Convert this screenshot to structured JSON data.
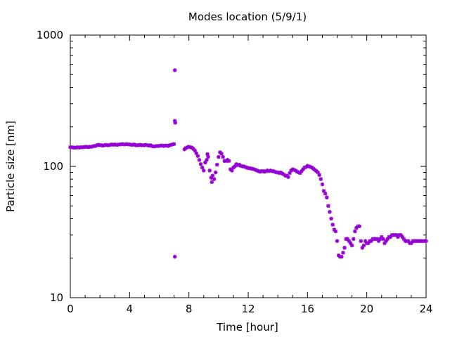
{
  "chart_data": {
    "type": "scatter",
    "title": "Modes location (5/9/1)",
    "xlabel": "Time [hour]",
    "ylabel": "Particle size [nm]",
    "xlim": [
      0,
      24
    ],
    "ylim": [
      10,
      1000
    ],
    "yscale": "log",
    "grid": false,
    "legend": "none",
    "marker_color": "#9400d3",
    "x_ticks": [
      0,
      4,
      8,
      12,
      16,
      20,
      24
    ],
    "x_tick_labels": [
      "0",
      "4",
      "8",
      "12",
      "16",
      "20",
      "24"
    ],
    "y_ticks": [
      10,
      100,
      1000
    ],
    "y_tick_labels": [
      "10",
      "100",
      "1000"
    ],
    "series": [
      {
        "points": [
          [
            0.0,
            140
          ],
          [
            0.1,
            140
          ],
          [
            0.2,
            139
          ],
          [
            0.3,
            139
          ],
          [
            0.4,
            139
          ],
          [
            0.5,
            140
          ],
          [
            0.6,
            139
          ],
          [
            0.7,
            140
          ],
          [
            0.8,
            140
          ],
          [
            0.9,
            140
          ],
          [
            1.0,
            141
          ],
          [
            1.1,
            141
          ],
          [
            1.2,
            140
          ],
          [
            1.3,
            141
          ],
          [
            1.4,
            141
          ],
          [
            1.5,
            142
          ],
          [
            1.6,
            143
          ],
          [
            1.7,
            143
          ],
          [
            1.8,
            145
          ],
          [
            1.9,
            146
          ],
          [
            2.0,
            145
          ],
          [
            2.1,
            145
          ],
          [
            2.2,
            144
          ],
          [
            2.3,
            145
          ],
          [
            2.4,
            146
          ],
          [
            2.5,
            145
          ],
          [
            2.6,
            145
          ],
          [
            2.7,
            146
          ],
          [
            2.8,
            147
          ],
          [
            2.9,
            146
          ],
          [
            3.0,
            147
          ],
          [
            3.1,
            146
          ],
          [
            3.2,
            146
          ],
          [
            3.3,
            147
          ],
          [
            3.4,
            147
          ],
          [
            3.5,
            148
          ],
          [
            3.6,
            147
          ],
          [
            3.7,
            147
          ],
          [
            3.8,
            148
          ],
          [
            3.9,
            147
          ],
          [
            4.0,
            147
          ],
          [
            4.1,
            146
          ],
          [
            4.2,
            146
          ],
          [
            4.3,
            147
          ],
          [
            4.4,
            145
          ],
          [
            4.5,
            145
          ],
          [
            4.6,
            145
          ],
          [
            4.7,
            146
          ],
          [
            4.8,
            145
          ],
          [
            4.9,
            145
          ],
          [
            5.0,
            145
          ],
          [
            5.1,
            146
          ],
          [
            5.2,
            145
          ],
          [
            5.3,
            144
          ],
          [
            5.4,
            145
          ],
          [
            5.5,
            143
          ],
          [
            5.6,
            142
          ],
          [
            5.7,
            142
          ],
          [
            5.8,
            143
          ],
          [
            5.9,
            143
          ],
          [
            6.0,
            143
          ],
          [
            6.1,
            144
          ],
          [
            6.2,
            144
          ],
          [
            6.3,
            143
          ],
          [
            6.4,
            144
          ],
          [
            6.5,
            144
          ],
          [
            6.6,
            143
          ],
          [
            6.7,
            145
          ],
          [
            6.8,
            146
          ],
          [
            6.9,
            147
          ],
          [
            7.0,
            148
          ],
          [
            7.05,
            540
          ],
          [
            7.05,
            222
          ],
          [
            7.08,
            215
          ],
          [
            7.05,
            20.5
          ],
          [
            7.7,
            135
          ],
          [
            7.8,
            138
          ],
          [
            7.9,
            140
          ],
          [
            8.0,
            141
          ],
          [
            8.1,
            140
          ],
          [
            8.2,
            139
          ],
          [
            8.3,
            136
          ],
          [
            8.4,
            132
          ],
          [
            8.5,
            126
          ],
          [
            8.6,
            120
          ],
          [
            8.7,
            112
          ],
          [
            8.8,
            104
          ],
          [
            8.9,
            98
          ],
          [
            9.0,
            93
          ],
          [
            9.1,
            107
          ],
          [
            9.2,
            112
          ],
          [
            9.25,
            124
          ],
          [
            9.3,
            118
          ],
          [
            9.4,
            93
          ],
          [
            9.5,
            82
          ],
          [
            9.55,
            76
          ],
          [
            9.6,
            85
          ],
          [
            9.7,
            80
          ],
          [
            9.8,
            90
          ],
          [
            9.9,
            103
          ],
          [
            10.0,
            118
          ],
          [
            10.1,
            128
          ],
          [
            10.2,
            125
          ],
          [
            10.3,
            118
          ],
          [
            10.4,
            110
          ],
          [
            10.5,
            110
          ],
          [
            10.6,
            112
          ],
          [
            10.7,
            110
          ],
          [
            10.8,
            95
          ],
          [
            10.9,
            93
          ],
          [
            11.0,
            98
          ],
          [
            11.1,
            100
          ],
          [
            11.2,
            104
          ],
          [
            11.3,
            102
          ],
          [
            11.4,
            103
          ],
          [
            11.5,
            101
          ],
          [
            11.6,
            100
          ],
          [
            11.7,
            100
          ],
          [
            11.8,
            99
          ],
          [
            11.9,
            98
          ],
          [
            12.0,
            97
          ],
          [
            12.1,
            97
          ],
          [
            12.2,
            96
          ],
          [
            12.3,
            96
          ],
          [
            12.4,
            95
          ],
          [
            12.5,
            94
          ],
          [
            12.6,
            93
          ],
          [
            12.7,
            92
          ],
          [
            12.8,
            91
          ],
          [
            12.9,
            92
          ],
          [
            13.0,
            92
          ],
          [
            13.1,
            91
          ],
          [
            13.2,
            92
          ],
          [
            13.3,
            93
          ],
          [
            13.4,
            92
          ],
          [
            13.5,
            93
          ],
          [
            13.6,
            92
          ],
          [
            13.7,
            92
          ],
          [
            13.8,
            91
          ],
          [
            13.9,
            90
          ],
          [
            14.0,
            90
          ],
          [
            14.1,
            89
          ],
          [
            14.2,
            90
          ],
          [
            14.3,
            88
          ],
          [
            14.4,
            87
          ],
          [
            14.5,
            85
          ],
          [
            14.6,
            85
          ],
          [
            14.7,
            83
          ],
          [
            14.8,
            89
          ],
          [
            14.9,
            93
          ],
          [
            15.0,
            95
          ],
          [
            15.1,
            94
          ],
          [
            15.2,
            93
          ],
          [
            15.3,
            91
          ],
          [
            15.4,
            90
          ],
          [
            15.5,
            89
          ],
          [
            15.6,
            92
          ],
          [
            15.7,
            95
          ],
          [
            15.8,
            98
          ],
          [
            15.9,
            99
          ],
          [
            16.0,
            101
          ],
          [
            16.1,
            100
          ],
          [
            16.2,
            99
          ],
          [
            16.3,
            98
          ],
          [
            16.4,
            96
          ],
          [
            16.5,
            94
          ],
          [
            16.6,
            92
          ],
          [
            16.7,
            90
          ],
          [
            16.8,
            86
          ],
          [
            16.9,
            80
          ],
          [
            17.0,
            73
          ],
          [
            17.1,
            65
          ],
          [
            17.2,
            62
          ],
          [
            17.3,
            58
          ],
          [
            17.4,
            50
          ],
          [
            17.5,
            45
          ],
          [
            17.6,
            40
          ],
          [
            17.7,
            36
          ],
          [
            17.8,
            33
          ],
          [
            17.9,
            32
          ],
          [
            18.0,
            27
          ],
          [
            18.1,
            21
          ],
          [
            18.2,
            20.5
          ],
          [
            18.3,
            20.5
          ],
          [
            18.4,
            22
          ],
          [
            18.5,
            24
          ],
          [
            18.6,
            28
          ],
          [
            18.7,
            28
          ],
          [
            18.8,
            27
          ],
          [
            18.9,
            26
          ],
          [
            19.0,
            25
          ],
          [
            19.1,
            28
          ],
          [
            19.2,
            32
          ],
          [
            19.3,
            34
          ],
          [
            19.4,
            35
          ],
          [
            19.5,
            35
          ],
          [
            19.6,
            27
          ],
          [
            19.7,
            24
          ],
          [
            19.8,
            25
          ],
          [
            19.9,
            27
          ],
          [
            20.0,
            26
          ],
          [
            20.1,
            26
          ],
          [
            20.2,
            27
          ],
          [
            20.3,
            27
          ],
          [
            20.4,
            28
          ],
          [
            20.5,
            28
          ],
          [
            20.6,
            28
          ],
          [
            20.7,
            28
          ],
          [
            20.8,
            27
          ],
          [
            20.9,
            28
          ],
          [
            21.0,
            29
          ],
          [
            21.1,
            28
          ],
          [
            21.2,
            26
          ],
          [
            21.3,
            27
          ],
          [
            21.4,
            28
          ],
          [
            21.5,
            29
          ],
          [
            21.6,
            29
          ],
          [
            21.7,
            30
          ],
          [
            21.8,
            30
          ],
          [
            21.9,
            30
          ],
          [
            22.0,
            30
          ],
          [
            22.1,
            29
          ],
          [
            22.2,
            30
          ],
          [
            22.3,
            30
          ],
          [
            22.4,
            29
          ],
          [
            22.5,
            28
          ],
          [
            22.6,
            27
          ],
          [
            22.7,
            27
          ],
          [
            22.8,
            27
          ],
          [
            22.9,
            26
          ],
          [
            23.0,
            26
          ],
          [
            23.1,
            27
          ],
          [
            23.2,
            27
          ],
          [
            23.3,
            27
          ],
          [
            23.4,
            27
          ],
          [
            23.5,
            27
          ],
          [
            23.6,
            27
          ],
          [
            23.7,
            27
          ],
          [
            23.8,
            27
          ],
          [
            23.9,
            27
          ],
          [
            24.0,
            27
          ]
        ]
      }
    ]
  }
}
